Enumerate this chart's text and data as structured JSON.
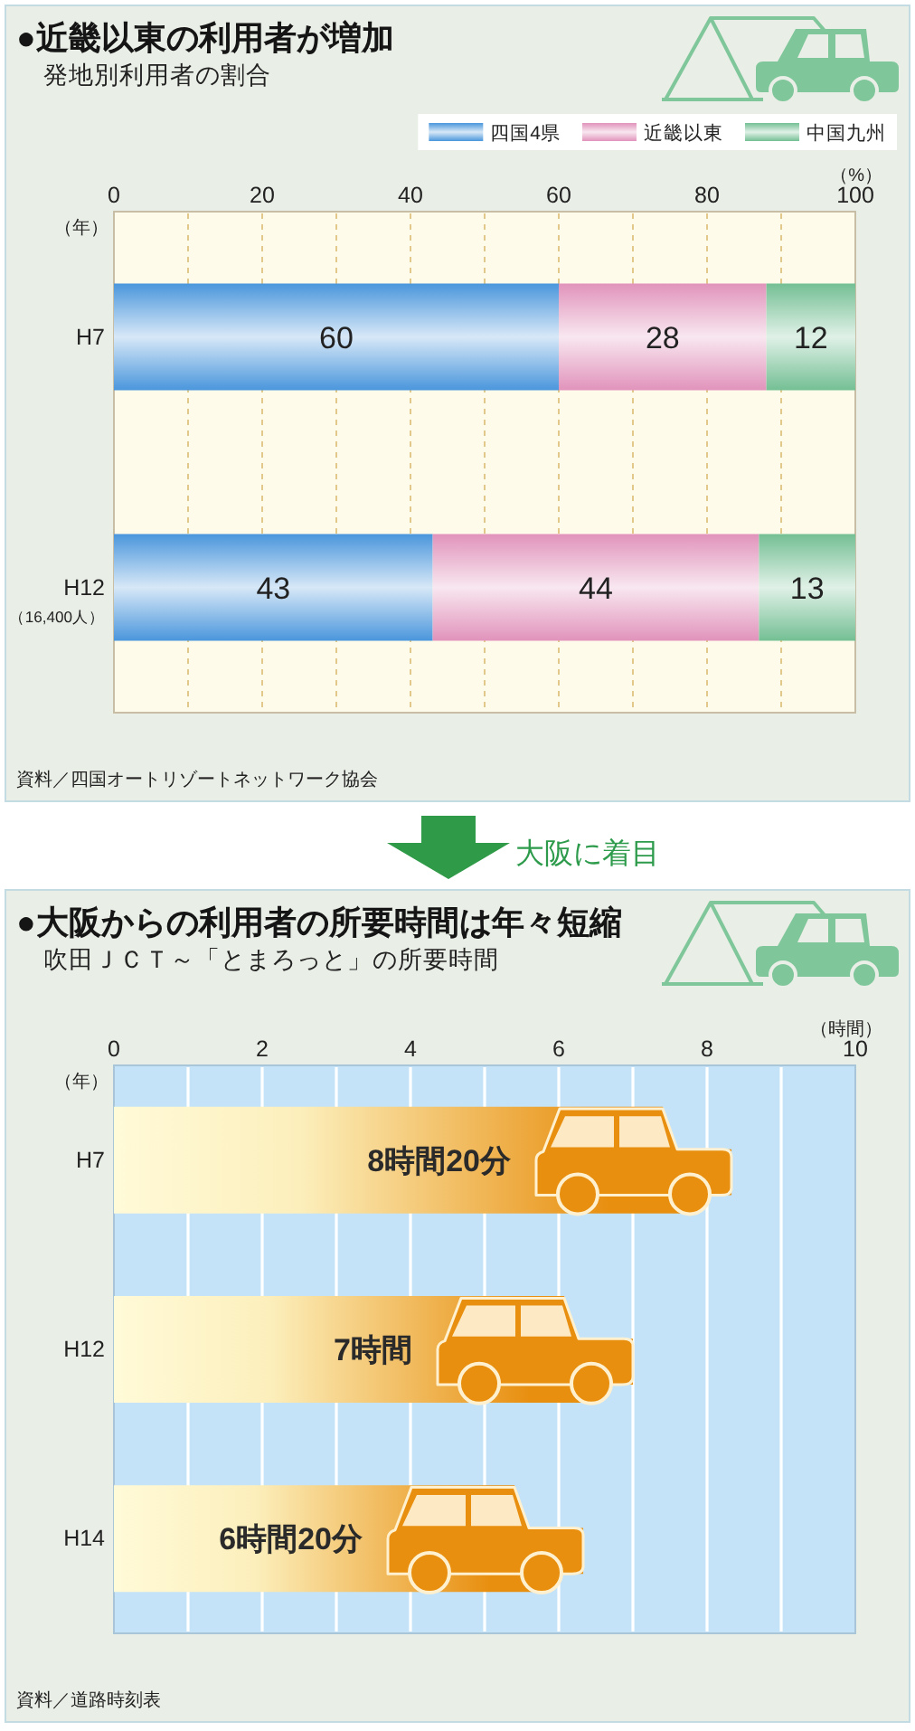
{
  "chart_data": [
    {
      "type": "bar",
      "orientation": "horizontal",
      "stacked": true,
      "title": "●近畿以東の利用者が増加",
      "subtitle": "発地別利用者の割合",
      "xlabel": "（%）",
      "ylabel": "（年）",
      "categories": [
        "H7",
        "H12\n（16,400人）"
      ],
      "series": [
        {
          "name": "四国4県",
          "color": "#4a96dc",
          "values": [
            60,
            43
          ]
        },
        {
          "name": "近畿以東",
          "color": "#e193bb",
          "values": [
            28,
            44
          ]
        },
        {
          "name": "中国九州",
          "color": "#74bf94",
          "values": [
            12,
            13
          ]
        }
      ],
      "xlim": [
        0,
        100
      ],
      "xticks": [
        0,
        {
          "value": 10,
          "label": null
        },
        20,
        {
          "value": 30,
          "label": null
        },
        40,
        {
          "value": 50,
          "label": null
        },
        60,
        {
          "value": 70,
          "label": null
        },
        80,
        {
          "value": 90,
          "label": null
        },
        100
      ],
      "grid": "x",
      "legend": "top right",
      "data_labels": true,
      "annotations": [
        "資料／四国オートリゾートネットワーク協会"
      ]
    },
    {
      "type": "bar",
      "orientation": "horizontal",
      "title": "●大阪からの利用者の所要時間は年々短縮",
      "subtitle": "吹田ＪＣＴ～「とまろっと」の所要時間",
      "xlabel": "（時間）",
      "ylabel": "（年）",
      "categories": [
        "H7",
        "H12",
        "H14"
      ],
      "values": [
        8.33,
        7,
        6.33
      ],
      "value_labels": [
        "8時間20分",
        "7時間",
        "6時間20分"
      ],
      "color": "#e88f10",
      "xlim": [
        0,
        10
      ],
      "xticks": [
        0,
        {
          "value": 1,
          "label": null
        },
        2,
        {
          "value": 3,
          "label": null
        },
        4,
        {
          "value": 5,
          "label": null
        },
        6,
        {
          "value": 7,
          "label": null
        },
        8,
        {
          "value": 9,
          "label": null
        },
        10
      ],
      "grid": "x",
      "annotations": [
        "大阪に着目",
        "資料／道路時刻表"
      ]
    }
  ]
}
